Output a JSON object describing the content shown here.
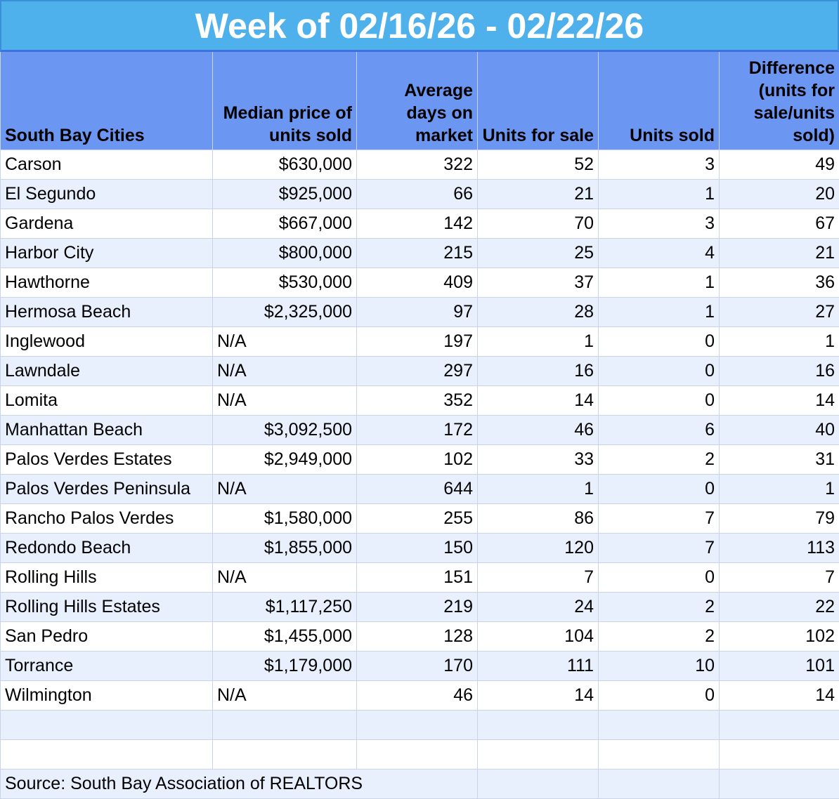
{
  "title": "Week of 02/16/26 - 02/22/26",
  "headers": [
    "South Bay Cities",
    "Median price of units sold",
    "Average days on market",
    "Units for sale",
    "Units sold",
    "Difference (units for sale/units sold)"
  ],
  "rows": [
    [
      "Carson",
      "$630,000",
      "322",
      "52",
      "3",
      "49"
    ],
    [
      "El Segundo",
      "$925,000",
      "66",
      "21",
      "1",
      "20"
    ],
    [
      "Gardena",
      "$667,000",
      "142",
      "70",
      "3",
      "67"
    ],
    [
      "Harbor City",
      "$800,000",
      "215",
      "25",
      "4",
      "21"
    ],
    [
      "Hawthorne",
      "$530,000",
      "409",
      "37",
      "1",
      "36"
    ],
    [
      "Hermosa Beach",
      "$2,325,000",
      "97",
      "28",
      "1",
      "27"
    ],
    [
      "Inglewood",
      "N/A",
      "197",
      "1",
      "0",
      "1"
    ],
    [
      "Lawndale",
      "N/A",
      "297",
      "16",
      "0",
      "16"
    ],
    [
      "Lomita",
      "N/A",
      "352",
      "14",
      "0",
      "14"
    ],
    [
      "Manhattan Beach",
      "$3,092,500",
      "172",
      "46",
      "6",
      "40"
    ],
    [
      "Palos Verdes Estates",
      "$2,949,000",
      "102",
      "33",
      "2",
      "31"
    ],
    [
      "Palos Verdes Peninsula",
      "N/A",
      "644",
      "1",
      "0",
      "1"
    ],
    [
      "Rancho Palos Verdes",
      "$1,580,000",
      "255",
      "86",
      "7",
      "79"
    ],
    [
      "Redondo Beach",
      "$1,855,000",
      "150",
      "120",
      "7",
      "113"
    ],
    [
      "Rolling Hills",
      "N/A",
      "151",
      "7",
      "0",
      "7"
    ],
    [
      "Rolling Hills Estates",
      "$1,117,250",
      "219",
      "24",
      "2",
      "22"
    ],
    [
      "San Pedro",
      "$1,455,000",
      "128",
      "104",
      "2",
      "102"
    ],
    [
      "Torrance",
      "$1,179,000",
      "170",
      "111",
      "10",
      "101"
    ],
    [
      "Wilmington",
      "N/A",
      "46",
      "14",
      "0",
      "14"
    ]
  ],
  "source": "Source: South Bay Association of REALTORS"
}
